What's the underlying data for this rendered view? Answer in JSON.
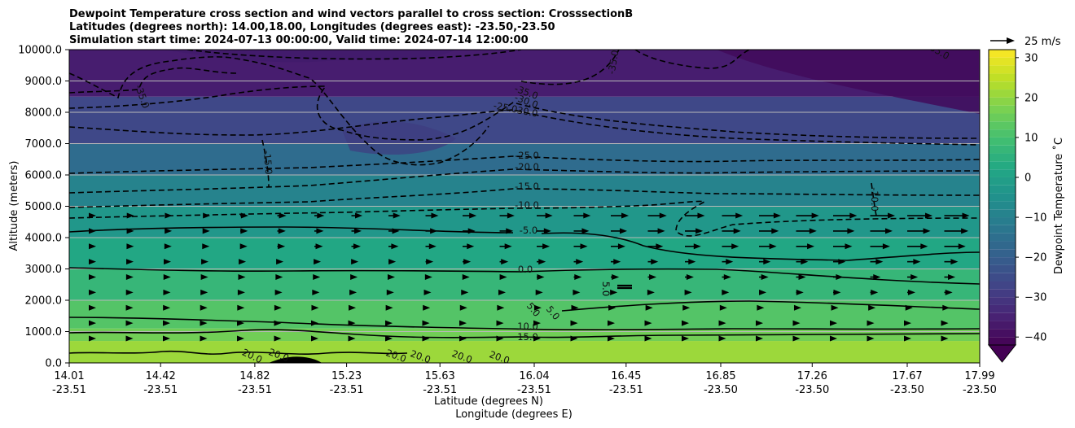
{
  "title": {
    "line1": "Dewpoint Temperature cross section and wind vectors parallel to cross section: CrosssectionB",
    "line2": "Latitudes (degrees north): 14.00,18.00, Longitudes (degrees east): -23.50,-23.50",
    "line3": "Simulation start time: 2024-07-13 00:00:00, Valid time: 2024-07-14 12:00:00"
  },
  "quiver_key": {
    "label": "25 m/s"
  },
  "colorbar": {
    "label": "Dewpoint Temperature ˚C",
    "ticks": [
      "30",
      "20",
      "10",
      "0",
      "−10",
      "−20",
      "−30",
      "−40"
    ],
    "range": [
      -42,
      32
    ],
    "extend": "min",
    "colors": [
      "#440154",
      "#482475",
      "#414487",
      "#355f8d",
      "#2a788e",
      "#21918c",
      "#22a884",
      "#44bf70",
      "#7ad151",
      "#bddf26",
      "#fde725"
    ]
  },
  "chart_data": {
    "type": "contourf",
    "xlabel_1": "Latitude (degrees N)",
    "xlabel_2": "Longitude (degrees E)",
    "ylabel": "Altitude (meters)",
    "ylim": [
      0,
      10000
    ],
    "grid": "horizontal",
    "y_ticks": [
      "0.0",
      "1000.0",
      "2000.0",
      "3000.0",
      "4000.0",
      "5000.0",
      "6000.0",
      "7000.0",
      "8000.0",
      "9000.0",
      "10000.0"
    ],
    "x_ticks": [
      {
        "lat": "14.01",
        "lon": "-23.51"
      },
      {
        "lat": "14.42",
        "lon": "-23.51"
      },
      {
        "lat": "14.82",
        "lon": "-23.51"
      },
      {
        "lat": "15.23",
        "lon": "-23.51"
      },
      {
        "lat": "15.63",
        "lon": "-23.51"
      },
      {
        "lat": "16.04",
        "lon": "-23.51"
      },
      {
        "lat": "16.45",
        "lon": "-23.51"
      },
      {
        "lat": "16.85",
        "lon": "-23.50"
      },
      {
        "lat": "17.26",
        "lon": "-23.50"
      },
      {
        "lat": "17.67",
        "lon": "-23.50"
      },
      {
        "lat": "17.99",
        "lon": "-23.50"
      }
    ],
    "dewpoint_bands": [
      {
        "altitude": [
          0,
          700
        ],
        "dewpoint_c": 21
      },
      {
        "altitude": [
          700,
          1100
        ],
        "dewpoint_c": 16
      },
      {
        "altitude": [
          1100,
          2000
        ],
        "dewpoint_c": 12
      },
      {
        "altitude": [
          2000,
          3000
        ],
        "dewpoint_c": 7
      },
      {
        "altitude": [
          3000,
          4000
        ],
        "dewpoint_c": 2
      },
      {
        "altitude": [
          4000,
          5000
        ],
        "dewpoint_c": -3
      },
      {
        "altitude": [
          5000,
          6000
        ],
        "dewpoint_c": -9
      },
      {
        "altitude": [
          6000,
          7000
        ],
        "dewpoint_c": -16
      },
      {
        "altitude": [
          7000,
          8500
        ],
        "dewpoint_c": -26
      },
      {
        "altitude": [
          8500,
          10000
        ],
        "dewpoint_c": -36
      }
    ],
    "contour_labels": [
      "-35.0",
      "-35.0",
      "-35.0",
      "-35.0",
      "-30.0",
      "-25.0",
      "-35.0",
      "-30.0",
      "-25.0",
      "-20.0",
      "-15.0",
      "-10.0",
      "-5.0",
      "0.0",
      "5.0",
      "5.0",
      "5.0",
      "5.0",
      "10.0",
      "15.0",
      "20.0",
      "20.0",
      "20.0",
      "20.0",
      "20.0",
      "20.0",
      "-15.0",
      "-10.0"
    ],
    "wind_vectors": "parallel to cross section, pointing east/north, increasing with altitude from ~4000 m"
  }
}
